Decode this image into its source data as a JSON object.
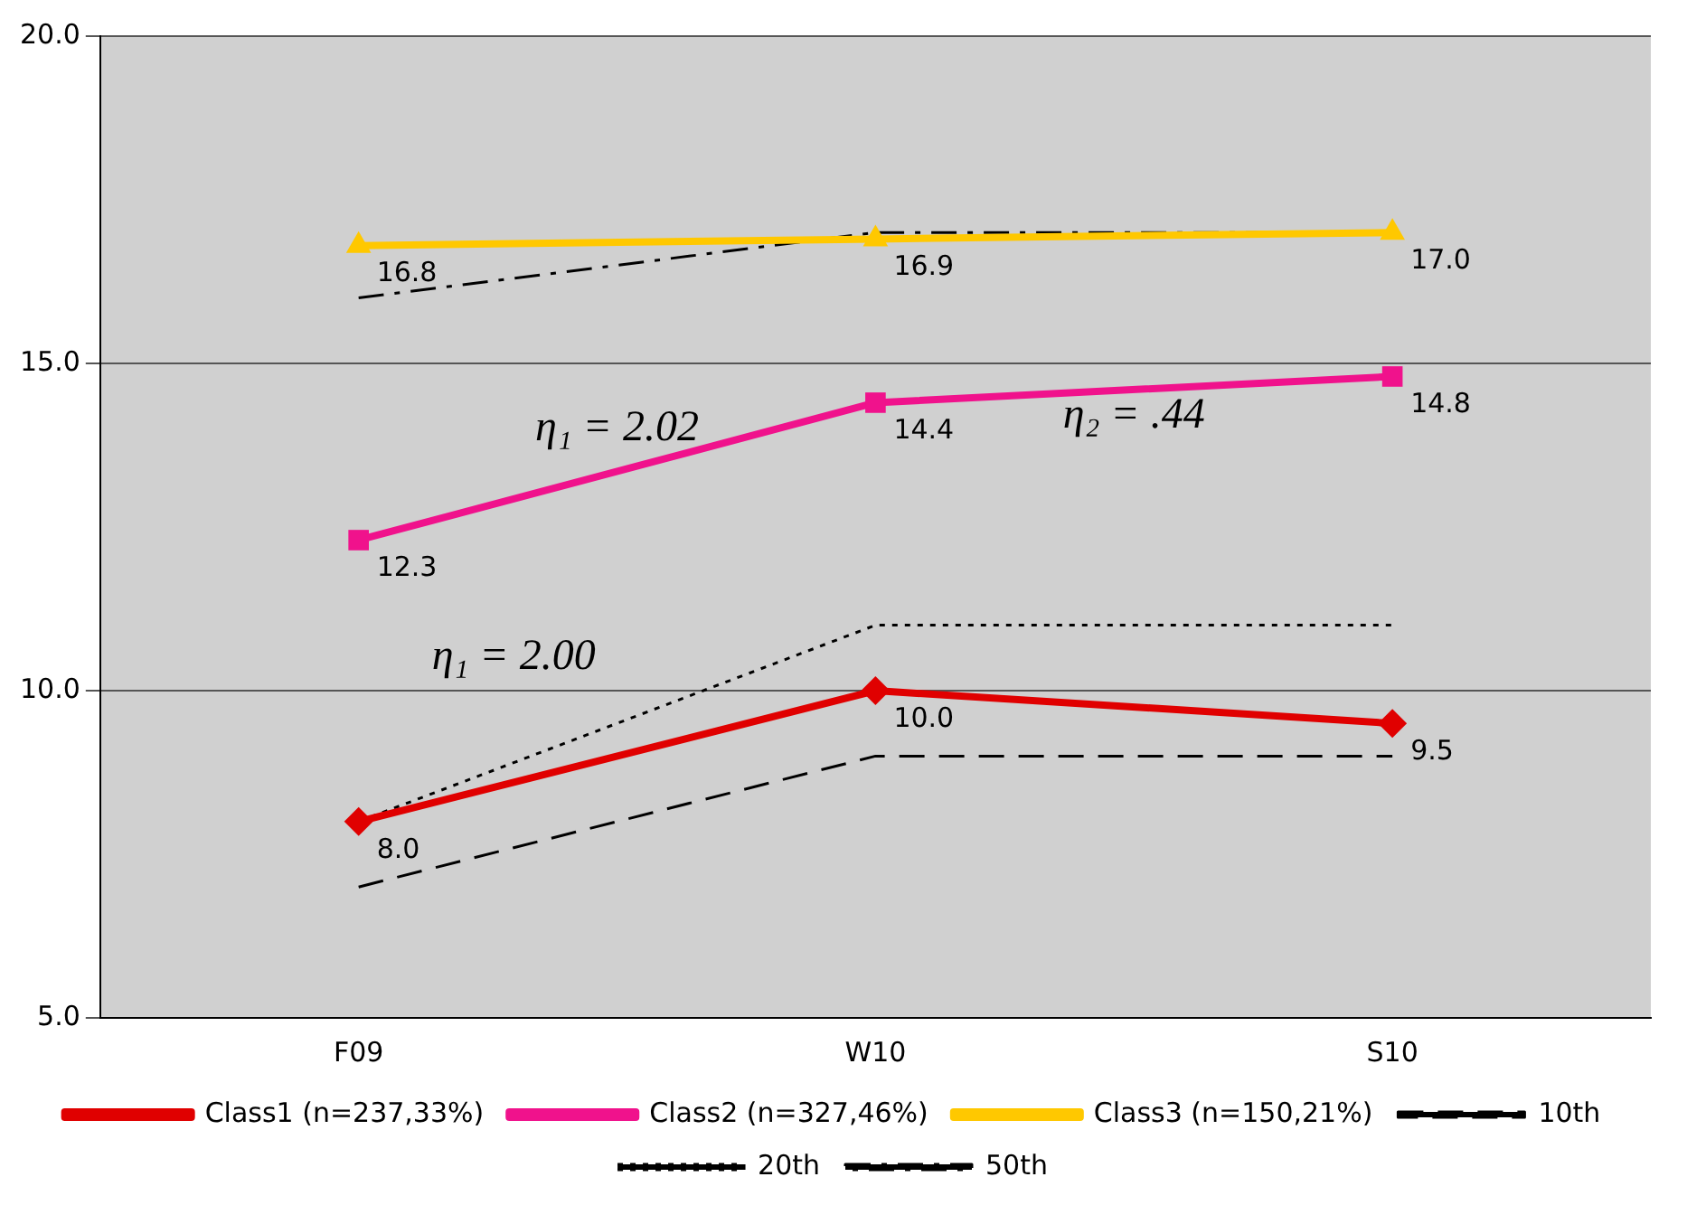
{
  "chart_data": {
    "type": "line",
    "categories": [
      "F09",
      "W10",
      "S10"
    ],
    "series": [
      {
        "name": "Class1 (n=237,33%)",
        "color": "#e00000",
        "values": [
          8.0,
          10.0,
          9.5
        ],
        "marker": "diamond",
        "line_style": "solid",
        "value_labels": [
          "8.0",
          "10.0",
          "9.5"
        ]
      },
      {
        "name": "Class2 (n=327,46%)",
        "color": "#f0128c",
        "values": [
          12.3,
          14.4,
          14.8
        ],
        "marker": "square",
        "line_style": "solid",
        "value_labels": [
          "12.3",
          "14.4",
          "14.8"
        ]
      },
      {
        "name": "Class3 (n=150,21%)",
        "color": "#ffc800",
        "values": [
          16.8,
          16.9,
          17.0
        ],
        "marker": "triangle",
        "line_style": "solid",
        "value_labels": [
          "16.8",
          "16.9",
          "17.0"
        ]
      },
      {
        "name": "10th",
        "color": "#000000",
        "values": [
          7,
          9,
          9
        ],
        "marker": "none",
        "line_style": "dashed"
      },
      {
        "name": "20th",
        "color": "#000000",
        "values": [
          8,
          11,
          11
        ],
        "marker": "none",
        "line_style": "dotted"
      },
      {
        "name": "50th",
        "color": "#000000",
        "values": [
          16,
          17,
          17
        ],
        "marker": "none",
        "line_style": "dashdot"
      }
    ],
    "ylim": [
      5,
      20
    ],
    "yticks": [
      {
        "value": 5,
        "label": "5.0"
      },
      {
        "value": 10,
        "label": "10.0"
      },
      {
        "value": 15,
        "label": "15.0"
      },
      {
        "value": 20,
        "label": "20.0"
      }
    ],
    "grid": "y",
    "legend": "bottom",
    "annotations": [
      "η₁ = 2.02",
      "η₂ = .44",
      "η₁ = 2.00"
    ]
  }
}
